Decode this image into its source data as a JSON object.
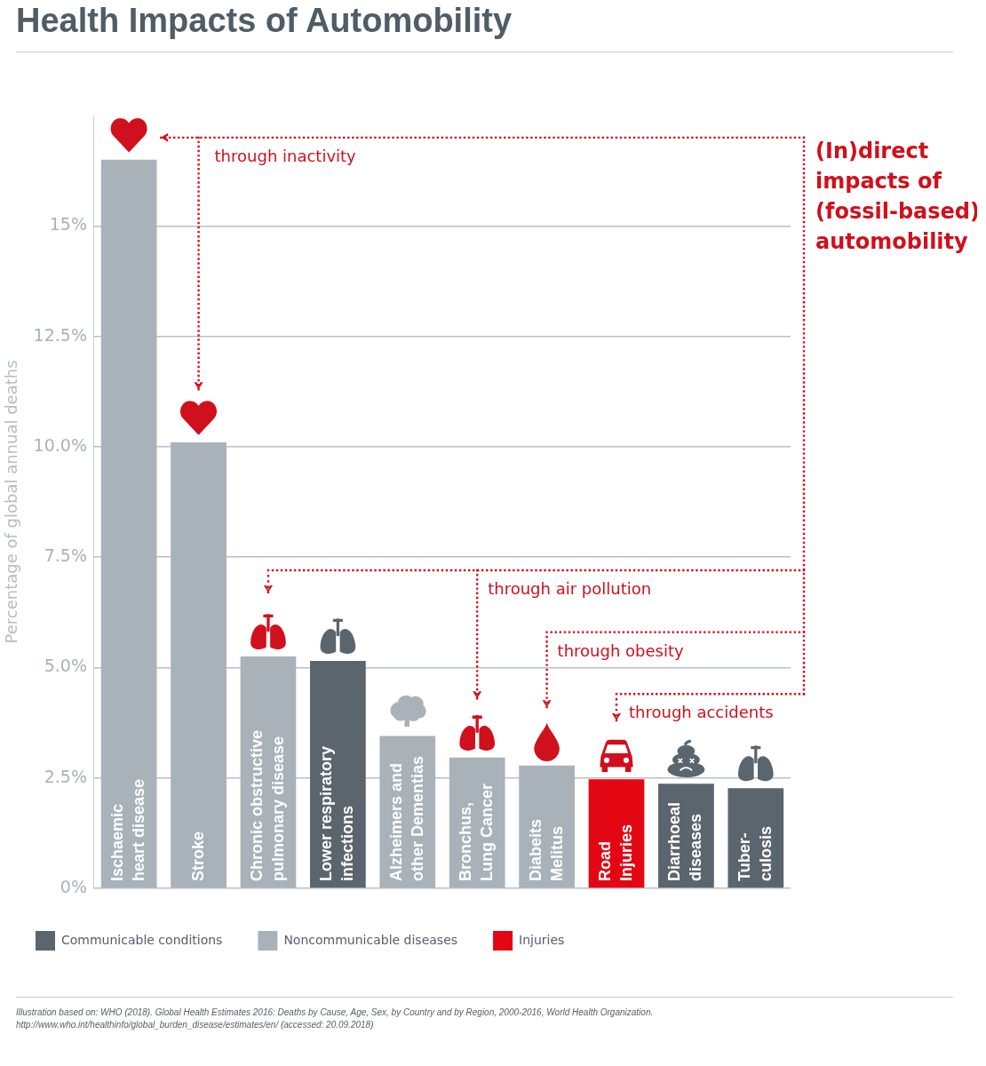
{
  "chart_data": {
    "type": "bar",
    "title": "Health Impacts of Automobility",
    "ylabel": "Percentage of global annual deaths",
    "categories": [
      "Ischaemic\nheart disease",
      "Stroke",
      "Chronic obstructive\npulmonary disease",
      "Lower respiratory\ninfections",
      "Alzheimers and\nother Dementias",
      "Bronchus,\nLung Cancer",
      "Diabeits\nMelitus",
      "Road\nInjuries",
      "Diarrhoeal\ndiseases",
      "Tuber-\nculosis"
    ],
    "series": [
      {
        "name": "Communicable conditions",
        "color": "#5b656e",
        "values": [
          null,
          null,
          null,
          5.15,
          null,
          null,
          null,
          null,
          2.37,
          2.27
        ]
      },
      {
        "name": "Noncommunicable diseases",
        "color": "#a9b2b9",
        "values": [
          16.5,
          10.1,
          5.25,
          null,
          3.45,
          2.96,
          2.78,
          null,
          null,
          null
        ]
      },
      {
        "name": "Injuries",
        "color": "#e30613",
        "values": [
          null,
          null,
          null,
          null,
          null,
          null,
          null,
          2.47,
          null,
          null
        ]
      }
    ],
    "stacked": true,
    "yticks": [
      {
        "value": 0,
        "label": "0%"
      },
      {
        "value": 2.5,
        "label": "2.5%"
      },
      {
        "value": 5,
        "label": "5.0%"
      },
      {
        "value": 7.5,
        "label": "7.5%"
      },
      {
        "value": 10,
        "label": "10.0%"
      },
      {
        "value": 12.5,
        "label": "12.5%"
      },
      {
        "value": 15,
        "label": "15%"
      }
    ],
    "ylim": [
      0,
      17.5
    ],
    "grid": "y",
    "legend": "bottom",
    "annotations": [
      "through inactivity",
      "through air pollution",
      "through obesity",
      "through accidents",
      "(In)direct\nimpacts of\n(fossil-based)\nautomobility",
      "Illustration based on: WHO (2018). Global Health Estimates 2016: Deaths by Cause, Age, Sex, by Country and by Region, 2000-2016, World Health Organization.\nhttp://www.who.int/healthinfo/global_burden_disease/estimates/en/ (accessed: 20.09.2018)"
    ]
  }
}
